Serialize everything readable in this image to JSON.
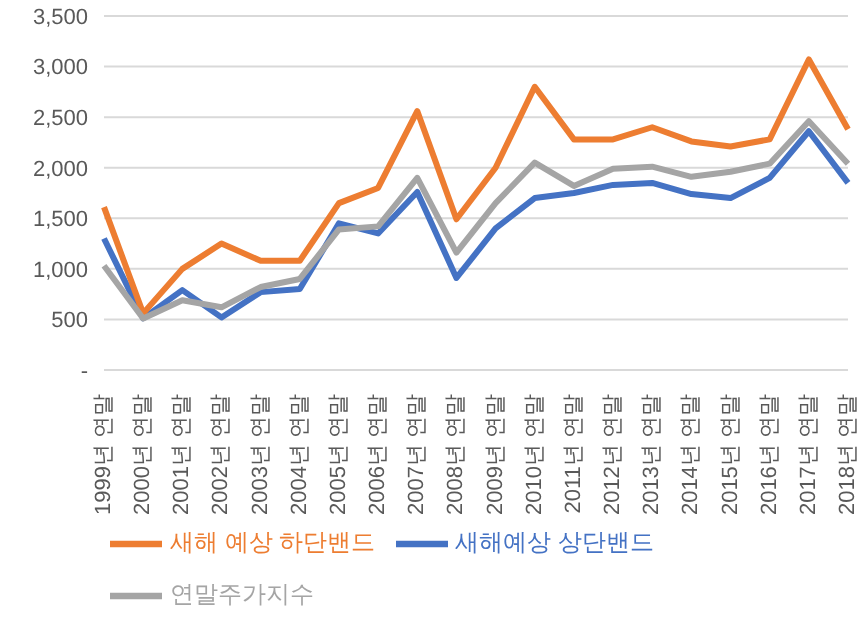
{
  "chart_data": {
    "type": "line",
    "categories": [
      "1999년 연말",
      "2000년 연말",
      "2001년 연말",
      "2002년 연말",
      "2003년 연말",
      "2004년 연말",
      "2005년 연말",
      "2006년 연말",
      "2007년 연말",
      "2008년 연말",
      "2009년 연말",
      "2010년 연말",
      "2011년 연말",
      "2012년 연말",
      "2013년 연말",
      "2014년 연말",
      "2015년 연말",
      "2016년 연말",
      "2017년 연말",
      "2018년 연말"
    ],
    "series": [
      {
        "name": "새해예상 상단밴드",
        "color": "#4472c4",
        "values": [
          1300,
          510,
          790,
          520,
          770,
          800,
          1450,
          1350,
          1760,
          910,
          1400,
          1700,
          1750,
          1830,
          1850,
          1740,
          1700,
          1900,
          2360,
          1850
        ]
      },
      {
        "name": "새해 예상 하단밴드",
        "color": "#ed7d31",
        "values": [
          1610,
          560,
          1000,
          1250,
          1080,
          1080,
          1650,
          1800,
          2560,
          1490,
          2000,
          2800,
          2280,
          2280,
          2400,
          2260,
          2210,
          2280,
          3070,
          2380
        ]
      },
      {
        "name": "연말주가지수",
        "color": "#a5a5a5",
        "values": [
          1030,
          510,
          690,
          620,
          820,
          900,
          1390,
          1420,
          1900,
          1160,
          1650,
          2050,
          1820,
          1990,
          2010,
          1910,
          1960,
          2040,
          2460,
          2040
        ]
      }
    ],
    "ylim": [
      0,
      3500
    ],
    "yticks": [
      {
        "value": 0,
        "label": "-"
      },
      {
        "value": 500,
        "label": "500"
      },
      {
        "value": 1000,
        "label": "1,000"
      },
      {
        "value": 1500,
        "label": "1,500"
      },
      {
        "value": 2000,
        "label": "2,000"
      },
      {
        "value": 2500,
        "label": "2,500"
      },
      {
        "value": 3000,
        "label": "3,000"
      },
      {
        "value": 3500,
        "label": "3,500"
      }
    ],
    "grid": "y",
    "legend": "bottom",
    "marker": "none",
    "line_style": "solid"
  }
}
